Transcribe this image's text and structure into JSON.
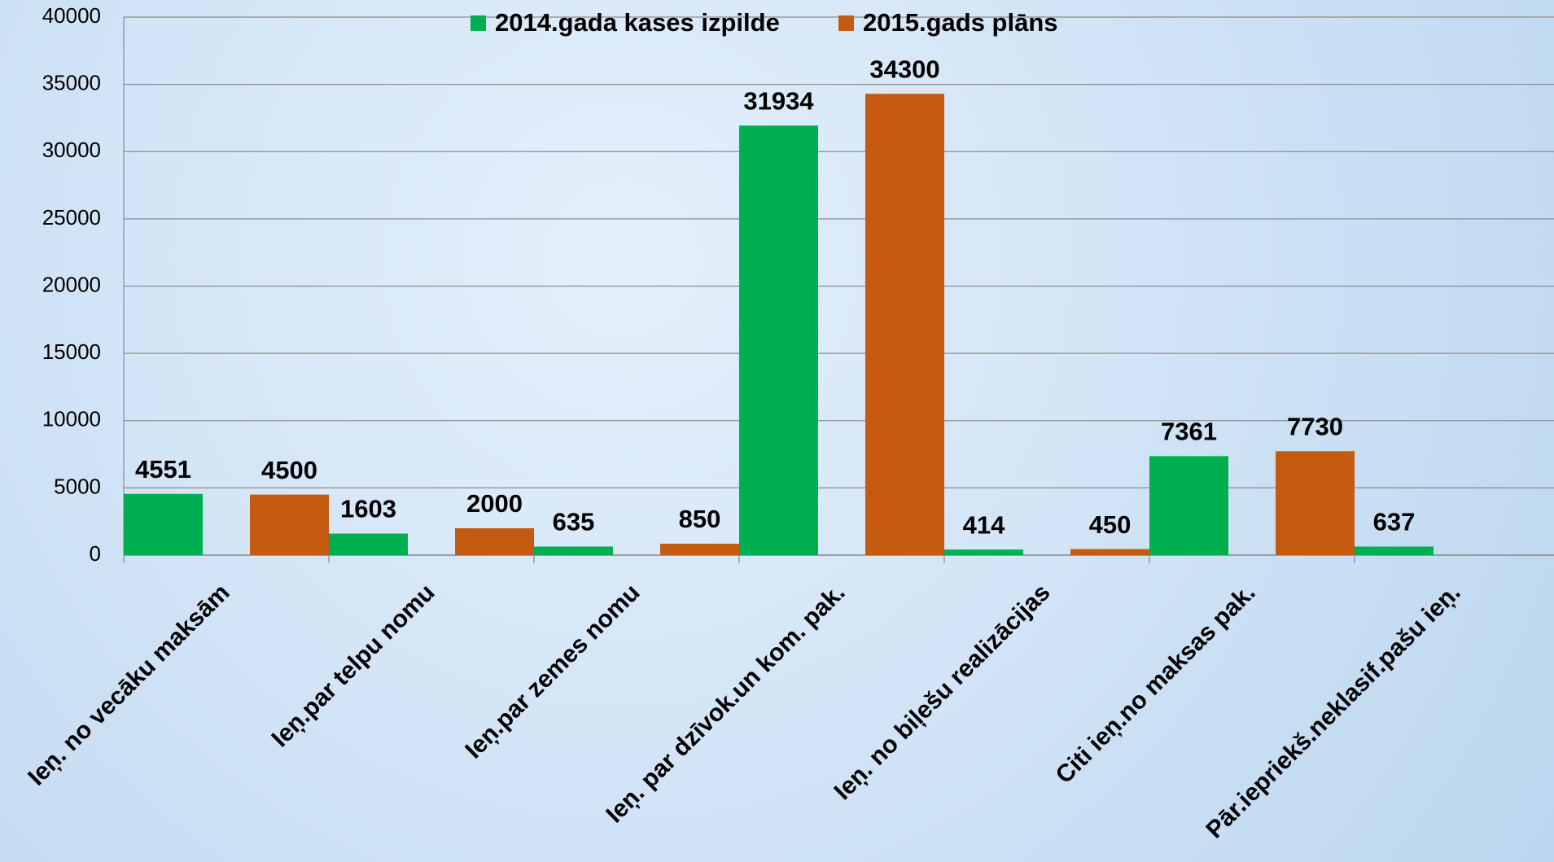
{
  "chart_data": {
    "type": "bar",
    "categories": [
      "Ieņ. no vecāku maksām",
      "Ieņ.par telpu nomu",
      "Ieņ.par zemes nomu",
      "Ieņ. par dzīvok.un kom. pak.",
      "Ieņ. no biļešu realizācijas",
      "Citi ieņ.no maksas pak.",
      "Pār.iepriekš.neklasif.pašu ieņ."
    ],
    "series": [
      {
        "name": "2014.gada kases izpilde",
        "color": "#00b050",
        "values": [
          4551,
          1603,
          635,
          31934,
          414,
          7361,
          637
        ]
      },
      {
        "name": "2015.gads plāns",
        "color": "#c55a11",
        "values": [
          4500,
          2000,
          850,
          34300,
          450,
          7730,
          null
        ]
      }
    ],
    "ylim": [
      0,
      40000
    ],
    "yticks": [
      0,
      5000,
      10000,
      15000,
      20000,
      25000,
      30000,
      35000,
      40000
    ],
    "grid": true,
    "legend": "top"
  }
}
